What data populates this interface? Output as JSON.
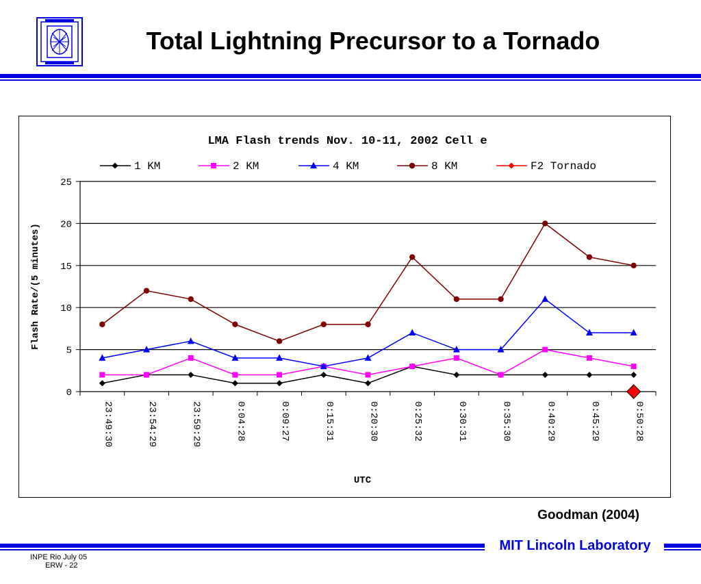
{
  "slide": {
    "title": "Total Lightning Precursor to a Tornado",
    "citation": "Goodman (2004)",
    "lab_name": "MIT Lincoln Laboratory",
    "footer_line1": "INPE Rio  July 05",
    "footer_line2": "ERW - 22",
    "accent_color": "#0000e0"
  },
  "chart_data": {
    "type": "line",
    "title": "LMA Flash trends Nov. 10-11, 2002 Cell e",
    "xlabel": "UTC",
    "ylabel": "Flash Rate/(5 minutes)",
    "ylim": [
      0,
      25
    ],
    "yticks": [
      0,
      5,
      10,
      15,
      20,
      25
    ],
    "grid": true,
    "legend_position": "top",
    "categories": [
      "23:49:30",
      "23:54:29",
      "23:59:29",
      "0:04:28",
      "0:09:27",
      "0:15:31",
      "0:20:30",
      "0:25:32",
      "0:30:31",
      "0:35:30",
      "0:40:29",
      "0:45:29",
      "0:50:28"
    ],
    "series": [
      {
        "name": "1 KM",
        "color": "#000000",
        "marker": "diamond",
        "values": [
          1,
          2,
          2,
          1,
          1,
          2,
          1,
          3,
          2,
          2,
          2,
          2,
          2
        ]
      },
      {
        "name": "2 KM",
        "color": "#ff00ff",
        "marker": "square",
        "values": [
          2,
          2,
          4,
          2,
          2,
          3,
          2,
          3,
          4,
          2,
          5,
          4,
          3
        ]
      },
      {
        "name": "4 KM",
        "color": "#0000ff",
        "marker": "triangle",
        "values": [
          4,
          5,
          6,
          4,
          4,
          3,
          4,
          7,
          5,
          5,
          11,
          7,
          7
        ]
      },
      {
        "name": "8 KM",
        "color": "#800000",
        "marker": "circle",
        "values": [
          8,
          12,
          11,
          8,
          6,
          8,
          8,
          16,
          11,
          11,
          20,
          16,
          15
        ]
      },
      {
        "name": "F2 Tornado",
        "color": "#ff0000",
        "marker": "big-diamond",
        "values": [
          null,
          null,
          null,
          null,
          null,
          null,
          null,
          null,
          null,
          null,
          null,
          null,
          0
        ]
      }
    ]
  }
}
